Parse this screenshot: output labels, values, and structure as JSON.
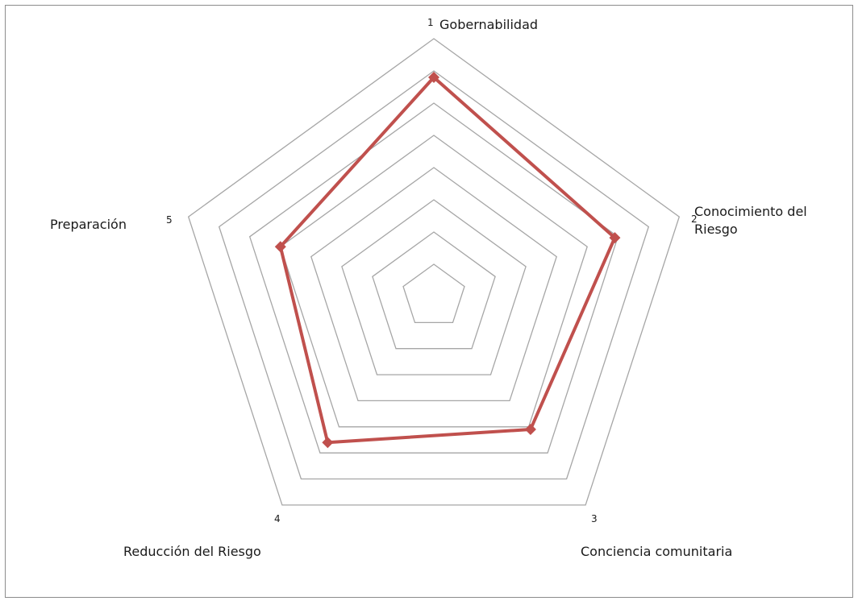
{
  "chart_data": {
    "type": "radar",
    "categories": [
      {
        "number": "1",
        "label": "Gobernabilidad"
      },
      {
        "number": "2",
        "label": "Conocimiento del Riesgo"
      },
      {
        "number": "3",
        "label": "Conciencia comunitaria"
      },
      {
        "number": "4",
        "label": "Reducción del Riesgo"
      },
      {
        "number": "5",
        "label": "Preparación"
      }
    ],
    "rings": 8,
    "rlim": [
      0,
      8
    ],
    "series": [
      {
        "values": [
          6.8,
          5.9,
          5.1,
          5.6,
          5.0
        ],
        "color": "#c0504d",
        "marker": "diamond"
      }
    ],
    "grid_color": "#a6a6a6",
    "legend": "none"
  }
}
